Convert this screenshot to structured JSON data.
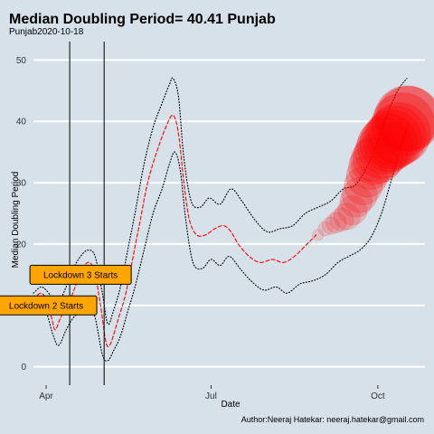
{
  "chart_data": {
    "type": "line",
    "title": "Median Doubling Period=  40.41 Punjab",
    "subtitle": "Punjab2020-10-18",
    "xlabel": "Date",
    "ylabel": "Median Doubling Period",
    "caption": "Author:Neeraj Hatekar: neeraj.hatekar@gmail.com",
    "xlim": [
      "2020-03-25",
      "2020-10-27"
    ],
    "ylim": [
      -3,
      53
    ],
    "x_ticks": [
      {
        "date": "2020-04-01",
        "label": "Apr"
      },
      {
        "date": "2020-07-01",
        "label": "Jul"
      },
      {
        "date": "2020-10-01",
        "label": "Oct"
      }
    ],
    "y_ticks": [
      0,
      10,
      20,
      30,
      40,
      50
    ],
    "grid": true,
    "vlines": [
      {
        "date": "2020-04-14"
      },
      {
        "date": "2020-05-03"
      }
    ],
    "annotations": [
      {
        "text": "Lockdown 2 Starts",
        "date": "2020-04-01",
        "y": 10,
        "fill": "#ffa500"
      },
      {
        "text": "Lockdown 3 Starts",
        "date": "2020-04-20",
        "y": 15,
        "fill": "#ffa500"
      }
    ],
    "series": [
      {
        "role": "median",
        "style": "dashed",
        "color": "#ff0000",
        "points": [
          [
            "2020-03-25",
            11
          ],
          [
            "2020-03-29",
            12
          ],
          [
            "2020-04-01",
            11
          ],
          [
            "2020-04-04",
            8
          ],
          [
            "2020-04-06",
            6
          ],
          [
            "2020-04-09",
            8
          ],
          [
            "2020-04-13",
            10
          ],
          [
            "2020-04-17",
            13
          ],
          [
            "2020-04-21",
            16
          ],
          [
            "2020-04-25",
            17
          ],
          [
            "2020-04-28",
            15
          ],
          [
            "2020-05-01",
            10
          ],
          [
            "2020-05-04",
            4
          ],
          [
            "2020-05-06",
            3.5
          ],
          [
            "2020-05-08",
            5
          ],
          [
            "2020-05-11",
            8
          ],
          [
            "2020-05-15",
            12
          ],
          [
            "2020-05-19",
            18
          ],
          [
            "2020-05-23",
            24
          ],
          [
            "2020-05-27",
            30
          ],
          [
            "2020-06-01",
            35
          ],
          [
            "2020-06-06",
            39
          ],
          [
            "2020-06-10",
            41
          ],
          [
            "2020-06-13",
            38
          ],
          [
            "2020-06-16",
            30
          ],
          [
            "2020-06-19",
            24
          ],
          [
            "2020-06-23",
            21.5
          ],
          [
            "2020-06-28",
            21.5
          ],
          [
            "2020-07-03",
            22.5
          ],
          [
            "2020-07-08",
            23
          ],
          [
            "2020-07-12",
            22
          ],
          [
            "2020-07-16",
            20
          ],
          [
            "2020-07-22",
            18
          ],
          [
            "2020-07-28",
            17
          ],
          [
            "2020-08-04",
            17.5
          ],
          [
            "2020-08-10",
            17
          ],
          [
            "2020-08-16",
            18
          ],
          [
            "2020-08-23",
            20
          ],
          [
            "2020-08-28",
            21.5
          ]
        ]
      },
      {
        "role": "upper-bound",
        "style": "dotted",
        "color": "#000000",
        "points": [
          [
            "2020-03-25",
            12
          ],
          [
            "2020-03-29",
            13
          ],
          [
            "2020-04-01",
            12.5
          ],
          [
            "2020-04-05",
            11
          ],
          [
            "2020-04-08",
            10.5
          ],
          [
            "2020-04-12",
            13
          ],
          [
            "2020-04-16",
            16
          ],
          [
            "2020-04-20",
            18
          ],
          [
            "2020-04-24",
            19
          ],
          [
            "2020-04-28",
            18
          ],
          [
            "2020-05-02",
            12
          ],
          [
            "2020-05-05",
            7
          ],
          [
            "2020-05-08",
            9
          ],
          [
            "2020-05-12",
            13
          ],
          [
            "2020-05-16",
            19
          ],
          [
            "2020-05-20",
            25
          ],
          [
            "2020-05-25",
            33
          ],
          [
            "2020-05-30",
            39
          ],
          [
            "2020-06-04",
            43
          ],
          [
            "2020-06-08",
            46
          ],
          [
            "2020-06-10",
            47
          ],
          [
            "2020-06-13",
            44
          ],
          [
            "2020-06-16",
            34
          ],
          [
            "2020-06-20",
            27
          ],
          [
            "2020-06-25",
            26
          ],
          [
            "2020-06-30",
            27.5
          ],
          [
            "2020-07-06",
            26.5
          ],
          [
            "2020-07-12",
            29
          ],
          [
            "2020-07-18",
            27
          ],
          [
            "2020-07-25",
            24
          ],
          [
            "2020-08-01",
            22
          ],
          [
            "2020-08-08",
            22.5
          ],
          [
            "2020-08-15",
            23
          ],
          [
            "2020-08-22",
            25
          ],
          [
            "2020-08-29",
            26
          ],
          [
            "2020-09-05",
            27
          ],
          [
            "2020-09-12",
            29
          ],
          [
            "2020-09-18",
            29.5
          ],
          [
            "2020-09-24",
            32
          ],
          [
            "2020-09-30",
            36
          ],
          [
            "2020-10-06",
            41
          ],
          [
            "2020-10-12",
            45
          ],
          [
            "2020-10-17",
            47
          ]
        ]
      },
      {
        "role": "lower-bound",
        "style": "dotted",
        "color": "#000000",
        "points": [
          [
            "2020-03-25",
            9
          ],
          [
            "2020-03-29",
            10
          ],
          [
            "2020-04-01",
            9
          ],
          [
            "2020-04-05",
            5
          ],
          [
            "2020-04-08",
            3.5
          ],
          [
            "2020-04-12",
            6
          ],
          [
            "2020-04-16",
            8
          ],
          [
            "2020-04-20",
            9
          ],
          [
            "2020-04-24",
            10
          ],
          [
            "2020-04-28",
            8
          ],
          [
            "2020-05-02",
            2
          ],
          [
            "2020-05-05",
            1
          ],
          [
            "2020-05-08",
            2.5
          ],
          [
            "2020-05-12",
            5
          ],
          [
            "2020-05-16",
            9
          ],
          [
            "2020-05-20",
            13
          ],
          [
            "2020-05-25",
            19
          ],
          [
            "2020-05-30",
            25
          ],
          [
            "2020-06-04",
            29
          ],
          [
            "2020-06-08",
            33
          ],
          [
            "2020-06-11",
            35
          ],
          [
            "2020-06-14",
            32
          ],
          [
            "2020-06-17",
            24
          ],
          [
            "2020-06-21",
            17
          ],
          [
            "2020-06-26",
            16
          ],
          [
            "2020-07-01",
            17.5
          ],
          [
            "2020-07-06",
            16.5
          ],
          [
            "2020-07-11",
            18
          ],
          [
            "2020-07-17",
            16
          ],
          [
            "2020-07-23",
            14
          ],
          [
            "2020-07-30",
            12.5
          ],
          [
            "2020-08-06",
            13
          ],
          [
            "2020-08-12",
            12
          ],
          [
            "2020-08-19",
            13.5
          ],
          [
            "2020-08-26",
            14
          ],
          [
            "2020-09-02",
            15
          ],
          [
            "2020-09-09",
            17
          ],
          [
            "2020-09-15",
            18
          ],
          [
            "2020-09-21",
            19
          ],
          [
            "2020-09-27",
            21
          ],
          [
            "2020-10-03",
            25
          ],
          [
            "2020-10-09",
            31
          ],
          [
            "2020-10-14",
            36
          ],
          [
            "2020-10-18",
            40
          ]
        ]
      }
    ],
    "bubbles": {
      "color": "#ff0000",
      "points": [
        [
          "2020-08-29",
          21.5,
          0.1
        ],
        [
          "2020-09-02",
          22.5,
          0.15
        ],
        [
          "2020-09-05",
          23,
          0.2
        ],
        [
          "2020-09-08",
          23.5,
          0.25
        ],
        [
          "2020-09-11",
          24,
          0.3
        ],
        [
          "2020-09-14",
          24.5,
          0.35
        ],
        [
          "2020-09-17",
          25.5,
          0.4
        ],
        [
          "2020-09-19",
          27,
          0.45
        ],
        [
          "2020-09-21",
          28,
          0.5
        ],
        [
          "2020-09-23",
          29.5,
          0.55
        ],
        [
          "2020-09-25",
          31,
          0.6
        ],
        [
          "2020-09-27",
          32.5,
          0.65
        ],
        [
          "2020-09-29",
          33.5,
          0.7
        ],
        [
          "2020-10-01",
          34,
          0.75
        ],
        [
          "2020-10-03",
          35,
          0.8
        ],
        [
          "2020-10-05",
          36,
          0.85
        ],
        [
          "2020-10-07",
          36.5,
          0.88
        ],
        [
          "2020-10-09",
          37,
          0.9
        ],
        [
          "2020-10-11",
          37.5,
          0.93
        ],
        [
          "2020-10-13",
          38,
          0.95
        ],
        [
          "2020-10-15",
          39.5,
          0.97
        ],
        [
          "2020-10-17",
          40.5,
          1.0
        ],
        [
          "2020-10-18",
          40.41,
          1.0
        ]
      ]
    }
  }
}
